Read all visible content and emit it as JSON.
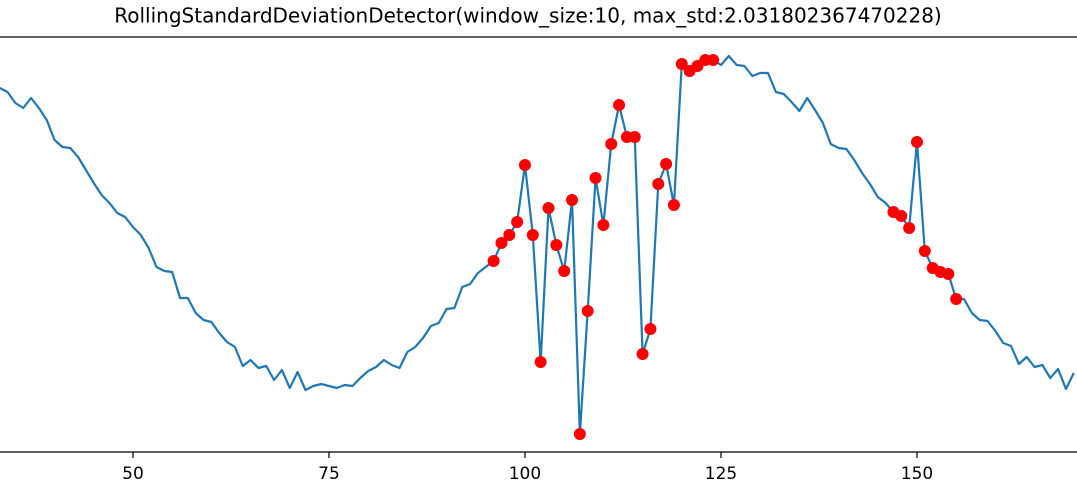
{
  "chart_data": {
    "type": "line",
    "title": "RollingStandardDeviationDetector(window_size:10, max_std:2.031802367470228)",
    "x": [
      33,
      34,
      35,
      36,
      37,
      38,
      39,
      40,
      41,
      42,
      43,
      44,
      45,
      46,
      47,
      48,
      49,
      50,
      51,
      52,
      53,
      54,
      55,
      56,
      57,
      58,
      59,
      60,
      61,
      62,
      63,
      64,
      65,
      66,
      67,
      68,
      69,
      70,
      71,
      72,
      73,
      74,
      75,
      76,
      77,
      78,
      79,
      80,
      81,
      82,
      83,
      84,
      85,
      86,
      87,
      88,
      89,
      90,
      91,
      92,
      93,
      94,
      95,
      96,
      97,
      98,
      99,
      100,
      101,
      102,
      103,
      104,
      105,
      106,
      107,
      108,
      109,
      110,
      111,
      112,
      113,
      114,
      115,
      116,
      117,
      118,
      119,
      120,
      121,
      122,
      123,
      124,
      125,
      126,
      127,
      128,
      129,
      130,
      131,
      132,
      133,
      134,
      135,
      136,
      137,
      138,
      139,
      140,
      141,
      142,
      143,
      144,
      145,
      146,
      147,
      148,
      149,
      150,
      151,
      152,
      153,
      154,
      155,
      156,
      157,
      158,
      159,
      160,
      161,
      162,
      163,
      164,
      165,
      166,
      167,
      168,
      169,
      170
    ],
    "series": [
      {
        "color": "#1f77b4",
        "values": [
          364,
          360,
          349,
          344,
          354,
          344,
          332,
          312,
          305,
          304,
          295,
          282,
          269,
          257,
          249,
          239,
          235,
          225,
          217,
          204,
          185,
          181,
          180,
          154,
          154,
          139,
          132,
          130,
          119,
          110,
          105,
          86,
          92,
          84,
          86,
          72,
          82,
          64,
          80,
          62,
          66,
          68,
          66,
          64,
          67,
          66,
          74,
          81,
          85,
          92,
          87,
          84,
          100,
          105,
          114,
          126,
          129,
          143,
          144,
          165,
          168,
          179,
          185,
          191,
          209,
          217,
          230,
          287,
          217,
          90,
          244,
          207,
          181,
          252,
          18,
          141,
          274,
          227,
          308,
          347,
          315,
          315,
          98,
          123,
          268,
          288,
          247,
          388,
          381,
          386,
          392,
          392,
          387,
          396,
          387,
          386,
          376,
          379,
          379,
          360,
          358,
          350,
          341,
          354,
          342,
          329,
          308,
          304,
          303,
          292,
          279,
          268,
          255,
          249,
          240,
          236,
          224,
          310,
          201,
          184,
          180,
          178,
          153,
          153,
          139,
          132,
          131,
          121,
          109,
          106,
          88,
          95,
          85,
          87,
          74,
          83,
          63,
          79
        ]
      },
      {
        "type": "scatter",
        "color": "#ff0000",
        "x": [
          96,
          97,
          98,
          99,
          100,
          101,
          102,
          103,
          104,
          105,
          106,
          107,
          108,
          109,
          110,
          111,
          112,
          113,
          114,
          115,
          116,
          117,
          118,
          119,
          120,
          121,
          122,
          123,
          124,
          147,
          148,
          149,
          150,
          151,
          152,
          153,
          154,
          155
        ],
        "values": [
          191,
          209,
          217,
          230,
          287,
          217,
          90,
          244,
          207,
          181,
          252,
          18,
          141,
          274,
          227,
          308,
          347,
          315,
          315,
          98,
          123,
          268,
          288,
          247,
          388,
          381,
          386,
          392,
          392,
          240,
          236,
          224,
          310,
          201,
          184,
          180,
          178,
          153
        ]
      }
    ],
    "xlim": [
      33.04,
      170.41
    ],
    "ylim": [
      0,
      415
    ],
    "xticks": [
      50,
      75,
      100,
      125,
      150
    ]
  }
}
